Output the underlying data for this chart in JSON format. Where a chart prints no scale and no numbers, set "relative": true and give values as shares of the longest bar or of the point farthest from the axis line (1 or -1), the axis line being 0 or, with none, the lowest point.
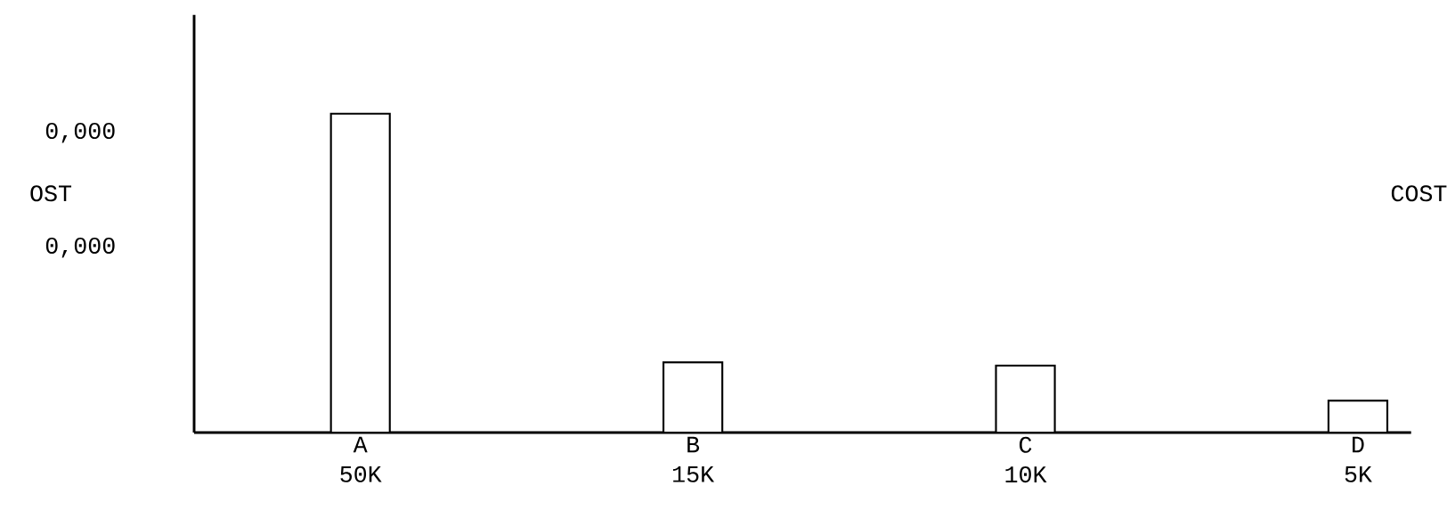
{
  "chart_data": {
    "type": "bar",
    "relative": true,
    "y2label": "COST",
    "annotations": [
      "0,000",
      "OST",
      "0,000"
    ],
    "categories": [
      "A 50K",
      "B 15K",
      "C 10K",
      "D 5K"
    ],
    "values": [
      1,
      0.22,
      0.21,
      0.1
    ],
    "color": "#000000"
  }
}
